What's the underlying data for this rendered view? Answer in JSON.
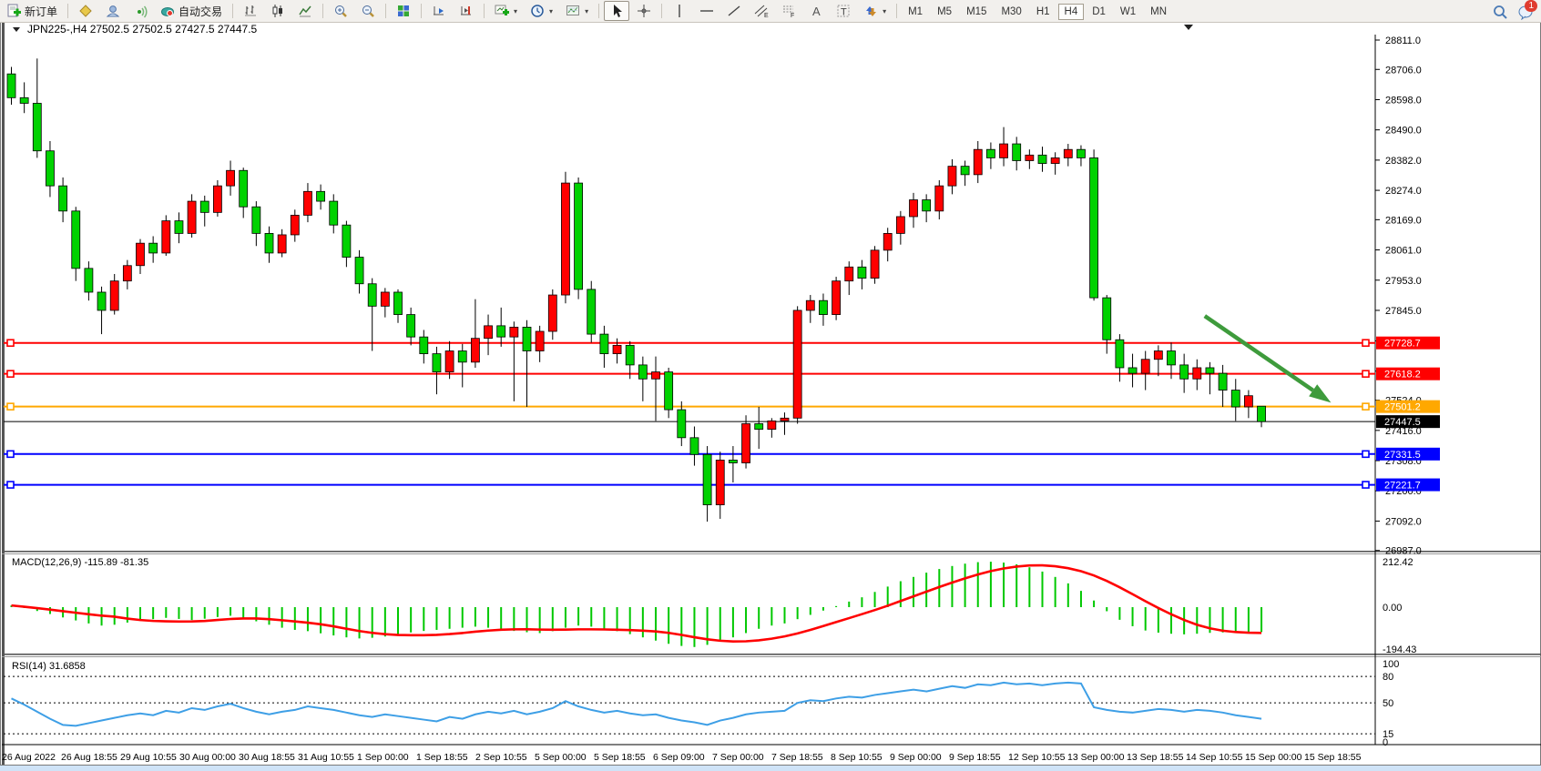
{
  "toolbar": {
    "new_order_label": "新订单",
    "auto_trading_label": "自动交易",
    "timeframes": [
      "M1",
      "M5",
      "M15",
      "M30",
      "H1",
      "H4",
      "D1",
      "W1",
      "MN"
    ],
    "active_timeframe": "H4",
    "notification_count": "1"
  },
  "chart": {
    "title": "JPN225-,H4",
    "title_ohlc": "27502.5 27502.5 27427.5 27447.5"
  },
  "chart_data": {
    "type": "candlestick",
    "symbol_period": "JPN225-,H4",
    "current_ohlc": {
      "open": 27502.5,
      "high": 27502.5,
      "low": 27427.5,
      "close": 27447.5
    },
    "price_ticks": [
      28811.0,
      28706.0,
      28598.0,
      28490.0,
      28382.0,
      28274.0,
      28169.0,
      28061.0,
      27953.0,
      27845.0,
      27736.0,
      27628.0,
      27524.0,
      27416.0,
      27308.0,
      27200.0,
      27092.0,
      26987.0
    ],
    "x_labels": [
      "26 Aug 2022",
      "26 Aug 18:55",
      "29 Aug 10:55",
      "30 Aug 00:00",
      "30 Aug 18:55",
      "31 Aug 10:55",
      "1 Sep 00:00",
      "1 Sep 18:55",
      "2 Sep 10:55",
      "5 Sep 00:00",
      "5 Sep 18:55",
      "6 Sep 09:00",
      "7 Sep 00:00",
      "7 Sep 18:55",
      "8 Sep 10:55",
      "9 Sep 00:00",
      "9 Sep 18:55",
      "12 Sep 10:55",
      "13 Sep 00:00",
      "13 Sep 18:55",
      "14 Sep 10:55",
      "15 Sep 00:00",
      "15 Sep 18:55"
    ],
    "hlines": [
      {
        "price": 27728.7,
        "label": "27728.7",
        "color": "#ff0000"
      },
      {
        "price": 27618.2,
        "label": "27618.2",
        "color": "#ff0000"
      },
      {
        "price": 27501.2,
        "label": "27501.2",
        "color": "#ffa800"
      },
      {
        "price": 27331.5,
        "label": "27331.5",
        "color": "#0000ff"
      },
      {
        "price": 27221.7,
        "label": "27221.7",
        "color": "#0000ff"
      }
    ],
    "bid_line": {
      "price": 27447.5,
      "label": "27447.5",
      "color": "#000000"
    },
    "candles": [
      [
        28690,
        28715,
        28580,
        28605
      ],
      [
        28605,
        28660,
        28550,
        28585
      ],
      [
        28585,
        28745,
        28390,
        28415
      ],
      [
        28415,
        28450,
        28250,
        28290
      ],
      [
        28290,
        28320,
        28160,
        28200
      ],
      [
        28200,
        28215,
        27950,
        27995
      ],
      [
        27995,
        28020,
        27880,
        27910
      ],
      [
        27910,
        27930,
        27760,
        27845
      ],
      [
        27845,
        27975,
        27830,
        27950
      ],
      [
        27950,
        28025,
        27920,
        28005
      ],
      [
        28005,
        28100,
        27975,
        28085
      ],
      [
        28085,
        28110,
        28015,
        28050
      ],
      [
        28050,
        28185,
        28040,
        28165
      ],
      [
        28165,
        28195,
        28085,
        28120
      ],
      [
        28120,
        28260,
        28105,
        28235
      ],
      [
        28235,
        28255,
        28145,
        28195
      ],
      [
        28195,
        28310,
        28180,
        28290
      ],
      [
        28290,
        28380,
        28255,
        28345
      ],
      [
        28345,
        28355,
        28175,
        28215
      ],
      [
        28215,
        28235,
        28075,
        28120
      ],
      [
        28120,
        28145,
        28015,
        28050
      ],
      [
        28050,
        28135,
        28035,
        28115
      ],
      [
        28115,
        28205,
        28090,
        28185
      ],
      [
        28185,
        28300,
        28160,
        28270
      ],
      [
        28270,
        28295,
        28205,
        28235
      ],
      [
        28235,
        28260,
        28120,
        28150
      ],
      [
        28150,
        28165,
        28000,
        28035
      ],
      [
        28035,
        28060,
        27905,
        27940
      ],
      [
        27940,
        27960,
        27700,
        27860
      ],
      [
        27860,
        27925,
        27820,
        27910
      ],
      [
        27910,
        27920,
        27800,
        27830
      ],
      [
        27830,
        27855,
        27720,
        27750
      ],
      [
        27750,
        27775,
        27655,
        27690
      ],
      [
        27690,
        27715,
        27545,
        27625
      ],
      [
        27625,
        27735,
        27600,
        27700
      ],
      [
        27700,
        27725,
        27570,
        27660
      ],
      [
        27660,
        27885,
        27640,
        27745
      ],
      [
        27745,
        27830,
        27685,
        27790
      ],
      [
        27790,
        27855,
        27715,
        27750
      ],
      [
        27750,
        27805,
        27520,
        27785
      ],
      [
        27785,
        27810,
        27500,
        27700
      ],
      [
        27700,
        27790,
        27660,
        27770
      ],
      [
        27770,
        27920,
        27740,
        27900
      ],
      [
        27900,
        28340,
        27870,
        28300
      ],
      [
        28300,
        28320,
        27885,
        27920
      ],
      [
        27920,
        27950,
        27730,
        27760
      ],
      [
        27760,
        27790,
        27640,
        27690
      ],
      [
        27690,
        27745,
        27655,
        27720
      ],
      [
        27720,
        27735,
        27600,
        27650
      ],
      [
        27650,
        27680,
        27520,
        27600
      ],
      [
        27600,
        27680,
        27450,
        27625
      ],
      [
        27625,
        27640,
        27460,
        27490
      ],
      [
        27490,
        27520,
        27360,
        27390
      ],
      [
        27390,
        27430,
        27290,
        27330
      ],
      [
        27330,
        27360,
        27090,
        27150
      ],
      [
        27150,
        27340,
        27100,
        27310
      ],
      [
        27310,
        27360,
        27230,
        27300
      ],
      [
        27300,
        27470,
        27280,
        27440
      ],
      [
        27440,
        27500,
        27350,
        27420
      ],
      [
        27420,
        27460,
        27390,
        27450
      ],
      [
        27450,
        27480,
        27400,
        27460
      ],
      [
        27460,
        27860,
        27440,
        27845
      ],
      [
        27845,
        27900,
        27800,
        27880
      ],
      [
        27880,
        27905,
        27790,
        27830
      ],
      [
        27830,
        27965,
        27810,
        27950
      ],
      [
        27950,
        28020,
        27900,
        28000
      ],
      [
        28000,
        28025,
        27920,
        27960
      ],
      [
        27960,
        28075,
        27940,
        28060
      ],
      [
        28060,
        28140,
        28020,
        28120
      ],
      [
        28120,
        28200,
        28080,
        28180
      ],
      [
        28180,
        28265,
        28140,
        28240
      ],
      [
        28240,
        28260,
        28160,
        28200
      ],
      [
        28200,
        28310,
        28170,
        28290
      ],
      [
        28290,
        28385,
        28260,
        28360
      ],
      [
        28360,
        28380,
        28290,
        28330
      ],
      [
        28330,
        28450,
        28300,
        28420
      ],
      [
        28420,
        28445,
        28350,
        28390
      ],
      [
        28390,
        28500,
        28360,
        28440
      ],
      [
        28440,
        28465,
        28345,
        28380
      ],
      [
        28380,
        28420,
        28350,
        28400
      ],
      [
        28400,
        28430,
        28340,
        28370
      ],
      [
        28370,
        28410,
        28330,
        28390
      ],
      [
        28390,
        28440,
        28360,
        28420
      ],
      [
        28420,
        28435,
        28360,
        28390
      ],
      [
        28390,
        28420,
        27880,
        27890
      ],
      [
        27890,
        27900,
        27690,
        27740
      ],
      [
        27740,
        27760,
        27590,
        27640
      ],
      [
        27640,
        27690,
        27570,
        27620
      ],
      [
        27620,
        27700,
        27560,
        27670
      ],
      [
        27670,
        27720,
        27610,
        27700
      ],
      [
        27700,
        27730,
        27600,
        27650
      ],
      [
        27650,
        27690,
        27550,
        27600
      ],
      [
        27600,
        27670,
        27560,
        27640
      ],
      [
        27640,
        27660,
        27545,
        27620
      ],
      [
        27620,
        27650,
        27500,
        27560
      ],
      [
        27560,
        27600,
        27450,
        27500
      ],
      [
        27500,
        27560,
        27460,
        27540
      ],
      [
        27502.5,
        27502.5,
        27427.5,
        27447.5
      ]
    ],
    "macd": {
      "label": "MACD(12,26,9)",
      "values_text": "-115.89 -81.35",
      "axis_labels": [
        "212.42",
        "0.00",
        "-194.43"
      ],
      "hist": [
        8,
        -4,
        -18,
        -32,
        -48,
        -62,
        -76,
        -86,
        -82,
        -72,
        -64,
        -56,
        -50,
        -55,
        -60,
        -54,
        -46,
        -40,
        -50,
        -66,
        -82,
        -96,
        -106,
        -112,
        -122,
        -132,
        -141,
        -146,
        -143,
        -137,
        -128,
        -118,
        -111,
        -106,
        -101,
        -96,
        -91,
        -96,
        -102,
        -111,
        -117,
        -121,
        -112,
        -96,
        -86,
        -91,
        -101,
        -112,
        -126,
        -141,
        -156,
        -171,
        -181,
        -186,
        -176,
        -161,
        -141,
        -121,
        -101,
        -86,
        -76,
        -56,
        -36,
        -16,
        5,
        26,
        46,
        71,
        96,
        121,
        141,
        161,
        178,
        192,
        203,
        210,
        212,
        208,
        200,
        186,
        166,
        141,
        111,
        76,
        31,
        -19,
        -59,
        -89,
        -109,
        -119,
        -124,
        -127,
        -124,
        -120,
        -118,
        -116,
        -117,
        -116
      ]
    },
    "rsi": {
      "label": "RSI(14)",
      "value_text": "31.6858",
      "levels": [
        100,
        80,
        50,
        15,
        0
      ],
      "series": [
        55,
        48,
        40,
        32,
        25,
        24,
        27,
        30,
        33,
        36,
        38,
        36,
        41,
        39,
        44,
        42,
        46,
        49,
        44,
        40,
        37,
        40,
        42,
        46,
        44,
        42,
        39,
        36,
        34,
        37,
        35,
        33,
        31,
        29,
        34,
        32,
        37,
        40,
        38,
        41,
        37,
        40,
        44,
        52,
        46,
        42,
        39,
        41,
        38,
        36,
        37,
        33,
        30,
        28,
        25,
        30,
        33,
        37,
        39,
        40,
        41,
        50,
        53,
        52,
        55,
        57,
        56,
        59,
        61,
        63,
        65,
        63,
        66,
        69,
        67,
        71,
        70,
        73,
        71,
        72,
        70,
        72,
        73,
        72,
        45,
        42,
        40,
        39,
        41,
        43,
        42,
        40,
        42,
        41,
        39,
        36,
        34,
        32
      ]
    },
    "arrow": {
      "from_bar": 92.6,
      "from_price": 27825,
      "to_bar": 102.4,
      "to_price": 27515,
      "color": "#3e9b3c"
    },
    "colors": {
      "up": "#ff0000",
      "down": "#00d200",
      "wick": "#000000",
      "macd_hist": "#00c800",
      "macd_signal": "#ff0000",
      "rsi_line": "#3e9fe6"
    }
  }
}
